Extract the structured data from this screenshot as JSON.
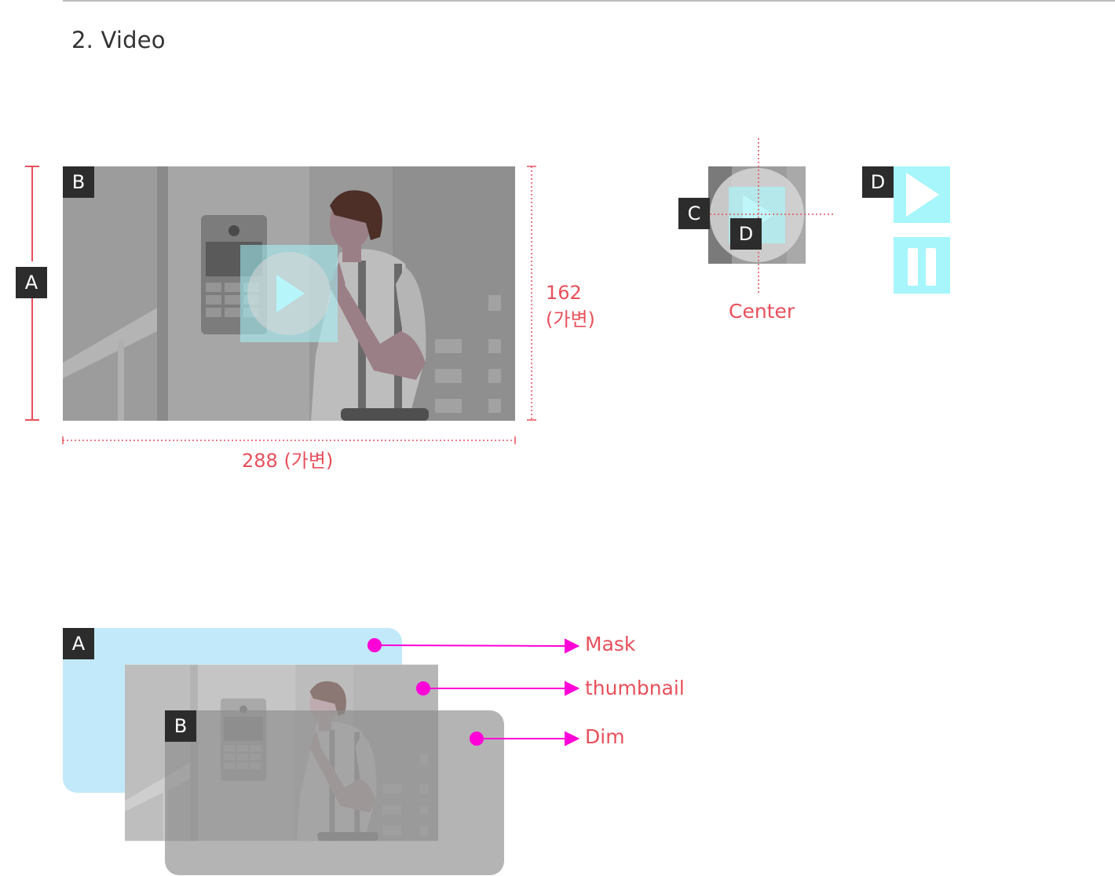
{
  "section_title": "2. Video",
  "tags": {
    "a": "A",
    "b": "B",
    "c": "C",
    "d": "D"
  },
  "dimensions": {
    "width": "288 (가변)",
    "height_value": "162",
    "height_note": "(가변)"
  },
  "center_label": "Center",
  "layers": [
    "Mask",
    "thumbnail",
    "Dim"
  ],
  "colors": {
    "accent": "#e8505b",
    "leader": "#ff00d8",
    "play_button": "#a6f6fb",
    "mask": "#c2e9fa",
    "tag_bg": "#2c2c2c"
  },
  "icons": [
    "play-icon",
    "pause-icon"
  ]
}
